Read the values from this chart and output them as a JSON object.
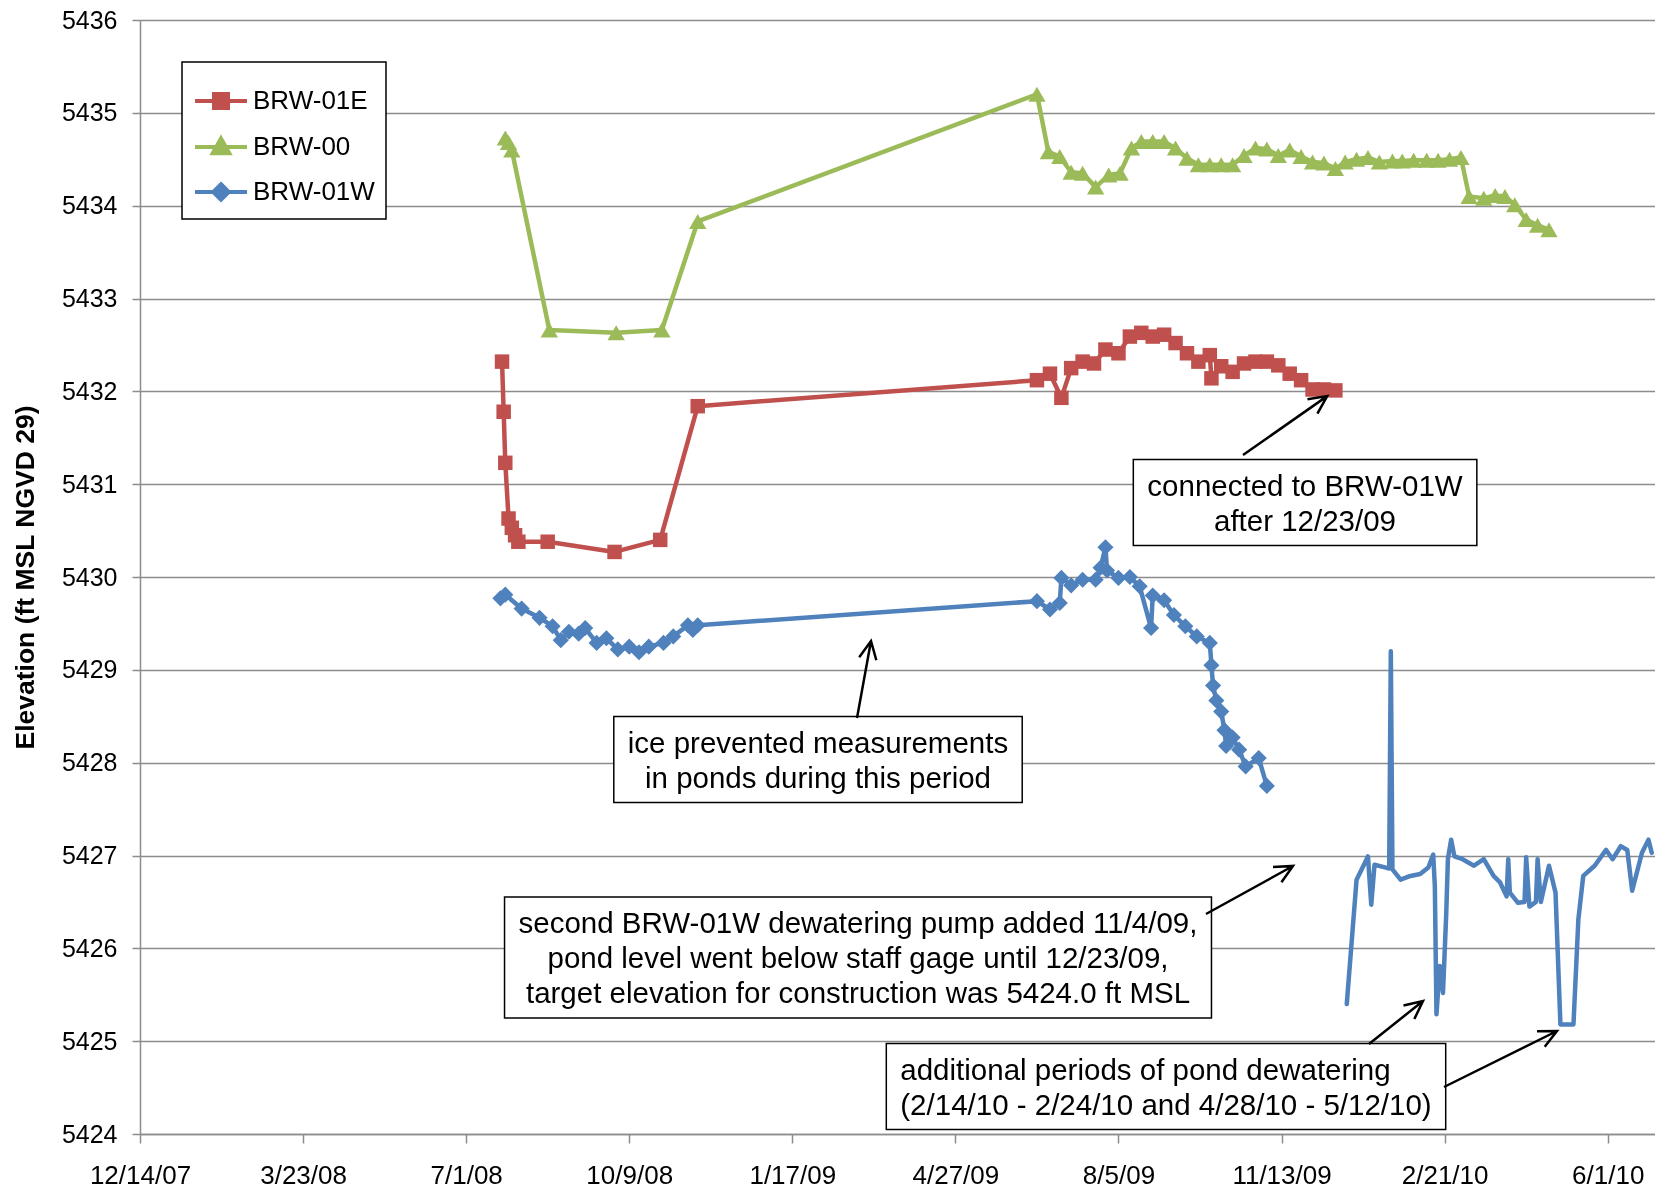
{
  "chart_data": {
    "type": "line",
    "ylabel": "Elevation (ft MSL NGVD 29)",
    "xlim": [
      "2007-12-14",
      "2010-06-30"
    ],
    "xticks": [
      {
        "value": "2007-12-14",
        "label": "12/14/07"
      },
      {
        "value": "2008-03-23",
        "label": "3/23/08"
      },
      {
        "value": "2008-07-01",
        "label": "7/1/08"
      },
      {
        "value": "2008-10-09",
        "label": "10/9/08"
      },
      {
        "value": "2009-01-17",
        "label": "1/17/09"
      },
      {
        "value": "2009-04-27",
        "label": "4/27/09"
      },
      {
        "value": "2009-08-05",
        "label": "8/5/09"
      },
      {
        "value": "2009-11-13",
        "label": "11/13/09"
      },
      {
        "value": "2010-02-21",
        "label": "2/21/10"
      },
      {
        "value": "2010-06-01",
        "label": "6/1/10"
      }
    ],
    "ylim": [
      5424,
      5436
    ],
    "yticks": [
      5424,
      5425,
      5426,
      5427,
      5428,
      5429,
      5430,
      5431,
      5432,
      5433,
      5434,
      5435,
      5436
    ],
    "grid": "y",
    "legend": "top left",
    "series": [
      {
        "name": "BRW-01E",
        "color": "#c0504d",
        "marker": "square",
        "x": [
          "2008-07-23",
          "2008-07-24",
          "2008-07-25",
          "2008-07-27",
          "2008-07-29",
          "2008-07-31",
          "2008-08-02",
          "2008-08-20",
          "2008-09-30",
          "2008-10-28",
          "2008-11-20",
          "2009-06-16",
          "2009-06-24",
          "2009-07-01",
          "2009-07-07",
          "2009-07-14",
          "2009-07-21",
          "2009-07-28",
          "2009-08-05",
          "2009-08-12",
          "2009-08-19",
          "2009-08-26",
          "2009-09-02",
          "2009-09-09",
          "2009-09-16",
          "2009-09-23",
          "2009-09-30",
          "2009-10-01",
          "2009-10-07",
          "2009-10-14",
          "2009-10-21",
          "2009-10-28",
          "2009-11-04",
          "2009-11-11",
          "2009-11-18",
          "2009-11-25",
          "2009-12-02",
          "2009-12-09",
          "2009-12-16"
        ],
        "values": [
          5432.32,
          5431.78,
          5431.23,
          5430.63,
          5430.53,
          5430.45,
          5430.38,
          5430.38,
          5430.27,
          5430.4,
          5431.84,
          5432.12,
          5432.19,
          5431.93,
          5432.25,
          5432.32,
          5432.3,
          5432.45,
          5432.41,
          5432.59,
          5432.63,
          5432.59,
          5432.61,
          5432.52,
          5432.41,
          5432.32,
          5432.39,
          5432.14,
          5432.27,
          5432.21,
          5432.3,
          5432.32,
          5432.32,
          5432.28,
          5432.19,
          5432.12,
          5432.02,
          5432.02,
          5432.01
        ]
      },
      {
        "name": "BRW-00",
        "color": "#9bbb59",
        "marker": "triangle",
        "x": [
          "2008-07-25",
          "2008-07-27",
          "2008-07-29",
          "2008-08-21",
          "2008-10-01",
          "2008-10-29",
          "2008-11-20",
          "2009-06-16",
          "2009-06-23",
          "2009-06-30",
          "2009-07-07",
          "2009-07-14",
          "2009-07-22",
          "2009-07-30",
          "2009-08-06",
          "2009-08-13",
          "2009-08-19",
          "2009-08-26",
          "2009-09-02",
          "2009-09-09",
          "2009-09-16",
          "2009-09-23",
          "2009-09-30",
          "2009-10-07",
          "2009-10-14",
          "2009-10-21",
          "2009-10-28",
          "2009-11-04",
          "2009-11-11",
          "2009-11-18",
          "2009-11-25",
          "2009-12-02",
          "2009-12-09",
          "2009-12-16",
          "2009-12-22",
          "2009-12-29",
          "2010-01-05",
          "2010-01-12",
          "2010-01-20",
          "2010-01-26",
          "2010-02-02",
          "2010-02-10",
          "2010-02-17",
          "2010-02-24",
          "2010-03-03",
          "2010-03-08",
          "2010-03-17",
          "2010-03-24",
          "2010-03-30",
          "2010-04-05",
          "2010-04-12",
          "2010-04-19",
          "2010-04-26"
        ],
        "values": [
          5434.73,
          5434.68,
          5434.6,
          5432.66,
          5432.63,
          5432.66,
          5433.83,
          5435.2,
          5434.58,
          5434.53,
          5434.36,
          5434.35,
          5434.2,
          5434.33,
          5434.35,
          5434.62,
          5434.69,
          5434.69,
          5434.69,
          5434.62,
          5434.51,
          5434.44,
          5434.44,
          5434.44,
          5434.44,
          5434.54,
          5434.62,
          5434.61,
          5434.54,
          5434.6,
          5434.53,
          5434.47,
          5434.46,
          5434.4,
          5434.47,
          5434.5,
          5434.52,
          5434.47,
          5434.48,
          5434.48,
          5434.49,
          5434.49,
          5434.49,
          5434.5,
          5434.52,
          5434.1,
          5434.08,
          5434.11,
          5434.1,
          5434.01,
          5433.85,
          5433.79,
          5433.74
        ]
      },
      {
        "name": "BRW-01W",
        "color": "#4f81bd",
        "marker": "diamond",
        "x": [
          "2008-07-22",
          "2008-07-25",
          "2008-08-04",
          "2008-08-15",
          "2008-08-23",
          "2008-08-28",
          "2008-09-02",
          "2008-09-08",
          "2008-09-12",
          "2008-09-19",
          "2008-09-25",
          "2008-10-02",
          "2008-10-09",
          "2008-10-15",
          "2008-10-21",
          "2008-10-30",
          "2008-11-05",
          "2008-11-14",
          "2008-11-17",
          "2008-11-20",
          "2009-06-16",
          "2009-06-24",
          "2009-06-30",
          "2009-07-01",
          "2009-07-07",
          "2009-07-14",
          "2009-07-22",
          "2009-07-25",
          "2009-07-28",
          "2009-07-29",
          "2009-08-05",
          "2009-08-12",
          "2009-08-18",
          "2009-08-25",
          "2009-08-26",
          "2009-09-02",
          "2009-09-08",
          "2009-09-15",
          "2009-09-22",
          "2009-09-30",
          "2009-10-01",
          "2009-10-02",
          "2009-10-04",
          "2009-10-07",
          "2009-10-09",
          "2009-10-10",
          "2009-10-14",
          "2009-10-18",
          "2009-10-22",
          "2009-10-30",
          "2009-11-04"
        ],
        "values": [
          5429.77,
          5429.81,
          5429.66,
          5429.56,
          5429.47,
          5429.32,
          5429.41,
          5429.39,
          5429.45,
          5429.29,
          5429.34,
          5429.22,
          5429.25,
          5429.19,
          5429.25,
          5429.29,
          5429.36,
          5429.48,
          5429.43,
          5429.48,
          5429.74,
          5429.65,
          5429.72,
          5429.99,
          5429.91,
          5429.97,
          5429.97,
          5430.1,
          5430.32,
          5430.07,
          5429.99,
          5430.0,
          5429.9,
          5429.45,
          5429.8,
          5429.75,
          5429.59,
          5429.47,
          5429.36,
          5429.29,
          5429.05,
          5428.83,
          5428.67,
          5428.55,
          5428.35,
          5428.18,
          5428.27,
          5428.14,
          5427.96,
          5428.05,
          5427.75
        ]
      },
      {
        "color": "#4f81bd",
        "marker": "none",
        "x": [
          "2009-12-23",
          "2009-12-29",
          "2010-01-05",
          "2010-01-07",
          "2010-01-09",
          "2010-01-16",
          "2010-01-18",
          "2010-01-19",
          "2010-01-20",
          "2010-01-25",
          "2010-01-31",
          "2010-02-06",
          "2010-02-11",
          "2010-02-14",
          "2010-02-15",
          "2010-02-16",
          "2010-02-18",
          "2010-02-20",
          "2010-02-22",
          "2010-02-23",
          "2010-02-25",
          "2010-02-27",
          "2010-03-04",
          "2010-03-11",
          "2010-03-17",
          "2010-03-23",
          "2010-03-27",
          "2010-03-31",
          "2010-04-01",
          "2010-04-02",
          "2010-04-07",
          "2010-04-11",
          "2010-04-12",
          "2010-04-14",
          "2010-04-18",
          "2010-04-19",
          "2010-04-21",
          "2010-04-26",
          "2010-04-30",
          "2010-05-03",
          "2010-05-11",
          "2010-05-14",
          "2010-05-17",
          "2010-05-24",
          "2010-05-31",
          "2010-06-04",
          "2010-06-09",
          "2010-06-13",
          "2010-06-16",
          "2010-06-22",
          "2010-06-26",
          "2010-06-28"
        ],
        "values": [
          5425.4,
          5426.74,
          5426.99,
          5426.47,
          5426.9,
          5426.87,
          5426.86,
          5429.2,
          5426.85,
          5426.74,
          5426.78,
          5426.8,
          5426.87,
          5427.01,
          5426.67,
          5425.29,
          5425.81,
          5425.52,
          5426.38,
          5426.96,
          5427.17,
          5426.99,
          5426.96,
          5426.89,
          5426.96,
          5426.78,
          5426.71,
          5426.56,
          5426.96,
          5426.6,
          5426.49,
          5426.5,
          5426.98,
          5426.45,
          5426.5,
          5426.96,
          5426.5,
          5426.89,
          5426.6,
          5425.18,
          5425.18,
          5426.31,
          5426.78,
          5426.89,
          5427.06,
          5426.96,
          5427.1,
          5427.06,
          5426.62,
          5427.03,
          5427.17,
          5427.03
        ]
      }
    ],
    "annotations": [
      {
        "text": "connected to BRW-01W\nafter 12/23/09",
        "x": "2009-12-16",
        "y": 5432.01
      },
      "ice prevented measurements\nin ponds during this period",
      "second BRW-01W dewatering pump added 11/4/09,\npond level went below staff gage until 12/23/09,\ntarget elevation for construction was 5424.0 ft MSL",
      "additional periods of pond dewatering\n(2/14/10 - 2/24/10 and 4/28/10 - 5/12/10)"
    ]
  }
}
